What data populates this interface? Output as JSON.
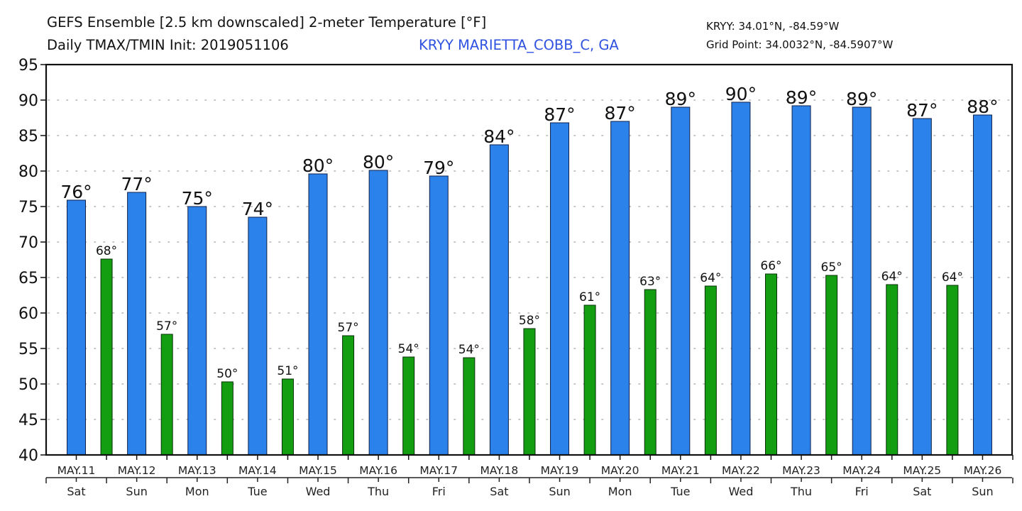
{
  "header": {
    "title_line1": "GEFS Ensemble [2.5 km downscaled] 2-meter Temperature [°F]",
    "title_line2": "Daily TMAX/TMIN Init: 2019051106",
    "station": "KRYY MARIETTA_COBB_C, GA",
    "station_coords": "KRYY: 34.01°N, -84.59°W",
    "grid_point": "Grid Point: 34.0032°N, -84.5907°W"
  },
  "colors": {
    "tmax": "#2b82ea",
    "tmin": "#139e12",
    "station_text": "#2f52e0"
  },
  "chart_data": {
    "type": "bar",
    "title": "GEFS Ensemble [2.5 km downscaled] 2-meter Temperature [°F] — Daily TMAX/TMIN",
    "xlabel": "",
    "ylabel": "",
    "ylim": [
      40,
      95
    ],
    "yticks": [
      40,
      45,
      50,
      55,
      60,
      65,
      70,
      75,
      80,
      85,
      90,
      95
    ],
    "grid": true,
    "categories": [
      "MAY.11",
      "MAY.12",
      "MAY.13",
      "MAY.14",
      "MAY.15",
      "MAY.16",
      "MAY.17",
      "MAY.18",
      "MAY.19",
      "MAY.20",
      "MAY.21",
      "MAY.22",
      "MAY.23",
      "MAY.24",
      "MAY.25",
      "MAY.26"
    ],
    "weekdays": [
      "Sat",
      "Sun",
      "Mon",
      "Tue",
      "Wed",
      "Thu",
      "Fri",
      "Sat",
      "Sun",
      "Mon",
      "Tue",
      "Wed",
      "Thu",
      "Fri",
      "Sat",
      "Sun"
    ],
    "series": [
      {
        "name": "TMAX",
        "values": [
          75.9,
          77.0,
          75.0,
          73.5,
          79.6,
          80.1,
          79.3,
          83.7,
          86.8,
          87.0,
          89.0,
          89.7,
          89.2,
          89.0,
          87.4,
          87.9
        ],
        "labels": [
          "76°",
          "77°",
          "75°",
          "74°",
          "80°",
          "80°",
          "79°",
          "84°",
          "87°",
          "87°",
          "89°",
          "90°",
          "89°",
          "89°",
          "87°",
          "88°"
        ]
      },
      {
        "name": "TMIN",
        "values": [
          67.6,
          57.0,
          50.3,
          50.7,
          56.8,
          53.8,
          53.7,
          57.8,
          61.1,
          63.3,
          63.8,
          65.5,
          65.3,
          64.0,
          63.9
        ],
        "labels": [
          "68°",
          "57°",
          "50°",
          "51°",
          "57°",
          "54°",
          "54°",
          "58°",
          "61°",
          "63°",
          "64°",
          "66°",
          "65°",
          "64°",
          "64°"
        ]
      }
    ]
  }
}
